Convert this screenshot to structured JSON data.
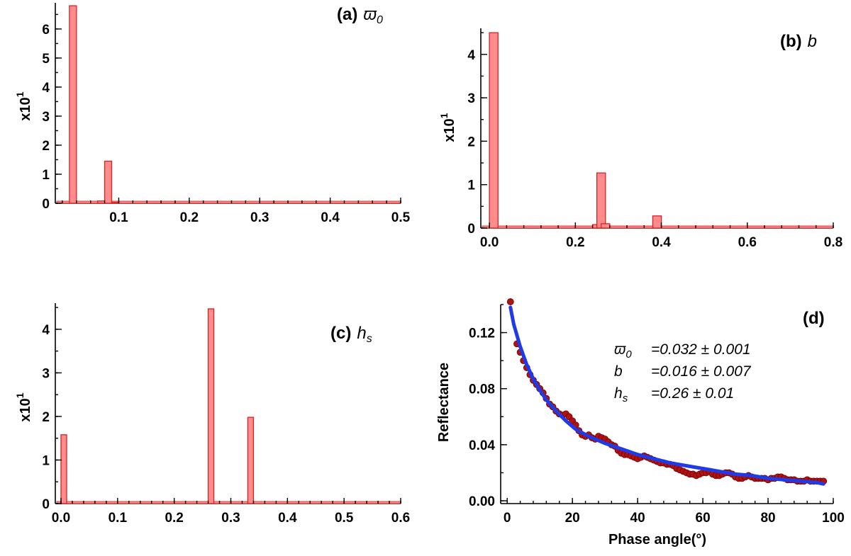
{
  "colors": {
    "bar_fill": "#ff8c8c",
    "bar_stroke": "#e02020",
    "fit_line": "#1f3be8",
    "scatter": "#b01212",
    "scatter_stroke": "#6e0000"
  },
  "chart_data": [
    {
      "id": "a",
      "type": "bar",
      "title_prefix": "(a)",
      "title_symbol": "ϖ",
      "title_sub": "0",
      "ylabel_base": "x10",
      "ylabel_exp": "1",
      "xlim": [
        0.01,
        0.5
      ],
      "ylim": [
        0,
        6.9
      ],
      "bin_width": 0.01,
      "xticks": [
        0.1,
        0.2,
        0.3,
        0.4,
        0.5
      ],
      "xtick_labels": [
        "0.1",
        "0.2",
        "0.3",
        "0.4",
        "0.5"
      ],
      "yticks": [
        0,
        1,
        2,
        3,
        4,
        5,
        6
      ],
      "ytick_labels": [
        "0",
        "1",
        "2",
        "3",
        "4",
        "5",
        "6"
      ],
      "bins": [
        {
          "x": 0.03,
          "value": 6.8
        },
        {
          "x": 0.07,
          "value": 0.08
        },
        {
          "x": 0.08,
          "value": 1.45
        },
        {
          "x": 0.09,
          "value": 0.03
        }
      ]
    },
    {
      "id": "b",
      "type": "bar",
      "title_prefix": "(b)",
      "title_symbol": "b",
      "title_sub": "",
      "ylabel_base": "x10",
      "ylabel_exp": "1",
      "xlim": [
        -0.02,
        0.8
      ],
      "ylim": [
        0,
        4.6
      ],
      "bin_width": 0.02,
      "xticks": [
        0.0,
        0.2,
        0.4,
        0.6,
        0.8
      ],
      "xtick_labels": [
        "0.0",
        "0.2",
        "0.4",
        "0.6",
        "0.8"
      ],
      "yticks": [
        0,
        1,
        2,
        3,
        4
      ],
      "ytick_labels": [
        "0",
        "1",
        "2",
        "3",
        "4"
      ],
      "bins": [
        {
          "x": 0.0,
          "value": 4.5
        },
        {
          "x": 0.24,
          "value": 0.08
        },
        {
          "x": 0.25,
          "value": 1.27
        },
        {
          "x": 0.26,
          "value": 0.1
        },
        {
          "x": 0.38,
          "value": 0.28
        }
      ]
    },
    {
      "id": "c",
      "type": "bar",
      "title_prefix": "(c)",
      "title_symbol": "h",
      "title_sub": "s",
      "ylabel_base": "x10",
      "ylabel_exp": "1",
      "xlim": [
        -0.01,
        0.6
      ],
      "ylim": [
        0,
        4.6
      ],
      "bin_width": 0.01,
      "xticks": [
        0.0,
        0.1,
        0.2,
        0.3,
        0.4,
        0.5,
        0.6
      ],
      "xtick_labels": [
        "0.0",
        "0.1",
        "0.2",
        "0.3",
        "0.4",
        "0.5",
        "0.6"
      ],
      "yticks": [
        0,
        1,
        2,
        3,
        4
      ],
      "ytick_labels": [
        "0",
        "1",
        "2",
        "3",
        "4"
      ],
      "bins": [
        {
          "x": 0.0,
          "value": 1.58
        },
        {
          "x": 0.26,
          "value": 4.47
        },
        {
          "x": 0.33,
          "value": 1.98
        }
      ]
    },
    {
      "id": "d",
      "type": "scatter",
      "title_prefix": "(d)",
      "xlabel": "Phase angle(°)",
      "ylabel": "Reflectance",
      "xlim": [
        -2,
        100
      ],
      "ylim": [
        -0.002,
        0.14
      ],
      "xticks": [
        0,
        20,
        40,
        60,
        80,
        100
      ],
      "xtick_labels": [
        "0",
        "20",
        "40",
        "60",
        "80",
        "100"
      ],
      "yticks": [
        0.0,
        0.04,
        0.08,
        0.12
      ],
      "ytick_labels": [
        "0.00",
        "0.04",
        "0.08",
        "0.12"
      ],
      "annotations": [
        {
          "sym": "ϖ",
          "sub": "0",
          "value": "=0.032 ± 0.001"
        },
        {
          "sym": "b",
          "sub": "",
          "value": "=0.016 ± 0.007"
        },
        {
          "sym": "h",
          "sub": "s",
          "value": "=0.26 ± 0.01"
        }
      ],
      "observed": {
        "x": [
          1,
          3,
          4,
          5,
          6,
          7,
          8,
          9,
          10,
          11,
          12,
          13,
          14,
          15,
          16,
          17,
          18,
          19,
          20,
          21,
          22,
          23,
          24,
          25,
          26,
          27,
          28,
          29,
          30,
          31,
          32,
          33,
          34,
          35,
          36,
          37,
          38,
          39,
          40,
          41,
          42,
          43,
          44,
          45,
          46,
          47,
          48,
          49,
          50,
          51,
          52,
          53,
          54,
          55,
          56,
          57,
          58,
          59,
          60,
          61,
          62,
          63,
          64,
          65,
          66,
          67,
          68,
          69,
          70,
          71,
          72,
          73,
          74,
          75,
          76,
          77,
          78,
          79,
          80,
          81,
          82,
          83,
          84,
          85,
          86,
          87,
          88,
          89,
          90,
          91,
          92,
          93,
          94,
          95,
          96,
          97
        ],
        "y": [
          0.142,
          0.112,
          0.106,
          0.1,
          0.095,
          0.09,
          0.086,
          0.083,
          0.08,
          0.077,
          0.073,
          0.069,
          0.067,
          0.064,
          0.062,
          0.061,
          0.062,
          0.06,
          0.057,
          0.054,
          0.05,
          0.047,
          0.046,
          0.047,
          0.045,
          0.044,
          0.046,
          0.045,
          0.044,
          0.042,
          0.04,
          0.039,
          0.036,
          0.034,
          0.033,
          0.033,
          0.032,
          0.031,
          0.03,
          0.031,
          0.032,
          0.031,
          0.03,
          0.029,
          0.028,
          0.027,
          0.027,
          0.026,
          0.026,
          0.025,
          0.023,
          0.022,
          0.021,
          0.02,
          0.019,
          0.019,
          0.018,
          0.019,
          0.02,
          0.02,
          0.021,
          0.019,
          0.018,
          0.018,
          0.019,
          0.02,
          0.02,
          0.019,
          0.017,
          0.016,
          0.016,
          0.017,
          0.018,
          0.017,
          0.016,
          0.016,
          0.016,
          0.016,
          0.015,
          0.016,
          0.016,
          0.017,
          0.017,
          0.016,
          0.015,
          0.015,
          0.015,
          0.014,
          0.014,
          0.014,
          0.015,
          0.014,
          0.014,
          0.014,
          0.014,
          0.014
        ]
      },
      "fit": {
        "x": [
          1,
          2,
          4,
          6,
          8,
          10,
          12,
          15,
          18,
          21,
          25,
          30,
          35,
          40,
          45,
          50,
          55,
          60,
          65,
          70,
          75,
          80,
          85,
          90,
          95,
          97
        ],
        "y": [
          0.138,
          0.126,
          0.11,
          0.097,
          0.087,
          0.079,
          0.072,
          0.064,
          0.057,
          0.051,
          0.046,
          0.041,
          0.037,
          0.033,
          0.03,
          0.027,
          0.025,
          0.023,
          0.021,
          0.019,
          0.018,
          0.016,
          0.015,
          0.014,
          0.013,
          0.012
        ]
      }
    }
  ]
}
